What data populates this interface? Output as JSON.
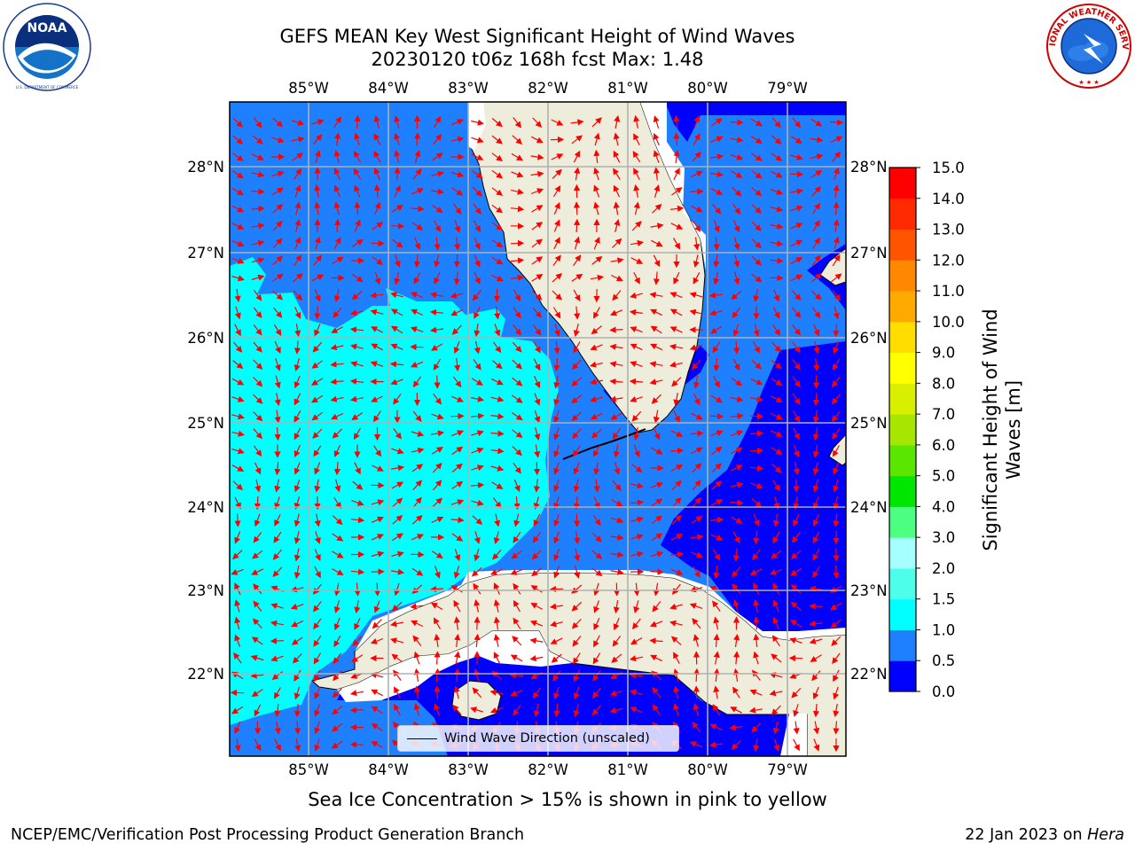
{
  "header": {
    "title_line1": "GEFS MEAN Key West Significant Height of Wind Waves",
    "title_line2": "20230120 t06z 168h fcst   Max: 1.48"
  },
  "logos": {
    "left": {
      "name": "noaa-logo",
      "text": "NOAA",
      "ring_text": "NATIONAL OCEANIC AND ATMOSPHERIC ADMINISTRATION · U.S. DEPARTMENT OF COMMERCE"
    },
    "right": {
      "name": "nws-logo",
      "ring_text": "NATIONAL WEATHER SERVICE"
    }
  },
  "map": {
    "lon_ticks": [
      "85°W",
      "84°W",
      "83°W",
      "82°W",
      "81°W",
      "80°W",
      "79°W"
    ],
    "lat_ticks": [
      "22°N",
      "23°N",
      "24°N",
      "25°N",
      "26°N",
      "27°N",
      "28°N"
    ],
    "legend_label": "Wind Wave Direction (unscaled)",
    "colors": {
      "land": "#eeeddb",
      "band_0_0_5": "#0000ff",
      "band_0_5_1_0": "#1e80ff",
      "band_1_0_1_5": "#00ffff",
      "arrow": "#ff0000",
      "grid": "#b0b0b0"
    }
  },
  "colorbar": {
    "label_line1": "Significant Height of Wind",
    "label_line2": "Waves [m]",
    "ticks": [
      "0.0",
      "0.5",
      "1.0",
      "1.5",
      "2.0",
      "3.0",
      "4.0",
      "5.0",
      "6.0",
      "7.0",
      "8.0",
      "9.0",
      "10.0",
      "11.0",
      "12.0",
      "13.0",
      "14.0",
      "15.0"
    ],
    "colors": [
      "#0000ff",
      "#1e80ff",
      "#00ffff",
      "#4dffea",
      "#a6ffff",
      "#4dff80",
      "#00e600",
      "#5ae600",
      "#a6e600",
      "#d8f000",
      "#ffff00",
      "#ffdd00",
      "#ffaa00",
      "#ff8800",
      "#ff5500",
      "#ff2a00",
      "#ff0000"
    ]
  },
  "footer": {
    "ice_note": "Sea Ice Concentration > 15% is shown in pink to yellow",
    "left": "NCEP/EMC/Verification Post Processing Product Generation Branch",
    "date": "22 Jan 2023",
    "on": "on",
    "host": "Hera"
  }
}
